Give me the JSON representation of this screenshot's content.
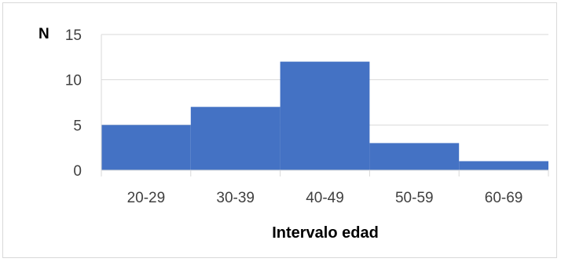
{
  "chart_data": {
    "type": "bar",
    "categories": [
      "20-29",
      "30-39",
      "40-49",
      "50-59",
      "60-69"
    ],
    "values": [
      5,
      7,
      12,
      3,
      1
    ],
    "ylabel": "N",
    "xlabel": "Intervalo edad",
    "ylim": [
      0,
      15
    ],
    "yticks": [
      "0",
      "5",
      "10",
      "15"
    ],
    "grid": true,
    "bar_color": "#4472c4",
    "grid_color": "#d9d9d9"
  }
}
